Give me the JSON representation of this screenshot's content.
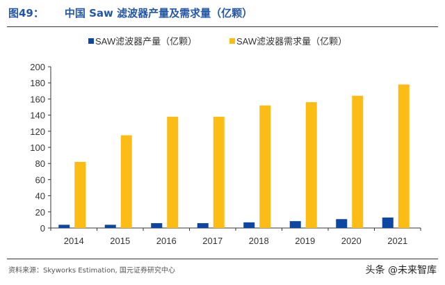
{
  "header": {
    "figure_no": "图49：",
    "title": "中国 Saw 滤波器产量及需求量（亿颗）"
  },
  "footer": {
    "source": "资料来源：Skyworks Estimation, 国元证券研究中心",
    "watermark": "头条 @未来智库"
  },
  "chart_data": {
    "type": "bar",
    "categories": [
      "2014",
      "2015",
      "2016",
      "2017",
      "2018",
      "2019",
      "2020",
      "2021"
    ],
    "series": [
      {
        "name": "SAW滤波器产量（亿颗）",
        "color": "#0d47a1",
        "values": [
          4,
          4,
          6,
          6,
          7,
          8.5,
          11,
          13
        ]
      },
      {
        "name": "SAW滤波器需求量（亿颗）",
        "color": "#fbbc15",
        "values": [
          82,
          115,
          138,
          138,
          152,
          156,
          164,
          178
        ]
      }
    ],
    "ylim": [
      0,
      200
    ],
    "yticks": [
      0,
      20,
      40,
      60,
      80,
      100,
      120,
      140,
      160,
      180,
      200
    ],
    "grid": false,
    "legend": "top"
  }
}
